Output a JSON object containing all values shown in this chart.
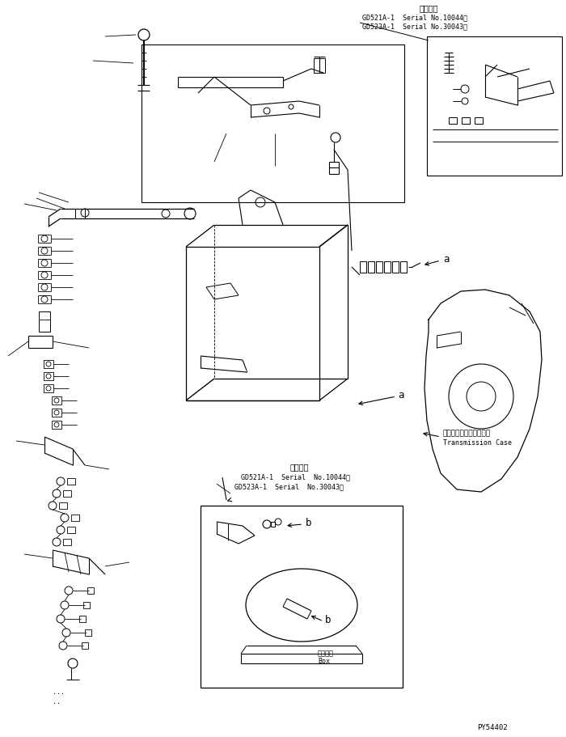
{
  "bg_color": "#ffffff",
  "line_color": "#000000",
  "title_top": "適用号機",
  "serial_line1": "GD521A-1  Serial No.10044～",
  "serial_line2": "GD523A-1  Serial No.30043～",
  "serial_line1b": "GD521A-1  Serial  No.10044～",
  "serial_line2b": "GD523A-1  Serial  No.30043～",
  "label_a": "a",
  "label_b1": "b",
  "label_b2": "b",
  "label_transmission_jp": "トランスミションケース",
  "label_transmission_en": "Transmission Case",
  "label_box_jp": "ボックス",
  "label_box_en": "Box",
  "label_tekiyo": "適用号機",
  "part_code": "PY54402",
  "fig_width": 7.0,
  "fig_height": 9.11
}
